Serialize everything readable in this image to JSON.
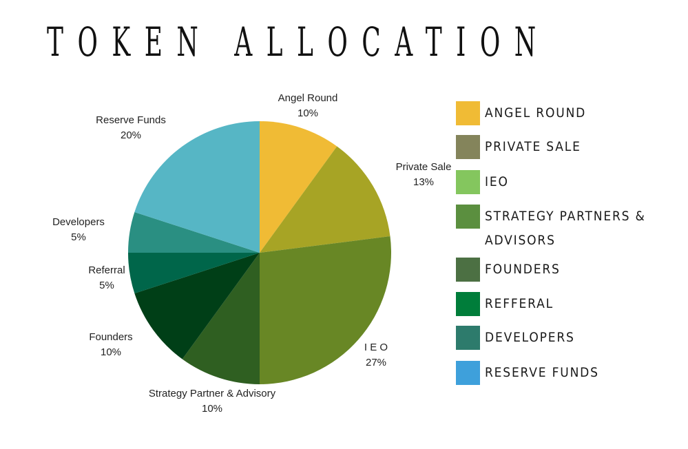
{
  "title": "TOKEN ALLOCATION",
  "chart_data": {
    "type": "pie",
    "title": "TOKEN ALLOCATION",
    "slices": [
      {
        "label": "Angel Round",
        "value": 10,
        "display": "10%",
        "color": "#F0BB35"
      },
      {
        "label": "Private Sale",
        "value": 13,
        "display": "13%",
        "color": "#A7A425"
      },
      {
        "label": "I E O",
        "value": 27,
        "display": "27%",
        "color": "#688725"
      },
      {
        "label": "Strategy Partner & Advisory",
        "value": 10,
        "display": "10%",
        "color": "#2F5F21"
      },
      {
        "label": "Founders",
        "value": 10,
        "display": "10%",
        "color": "#003F17"
      },
      {
        "label": "Referral",
        "value": 5,
        "display": "5%",
        "color": "#00664A"
      },
      {
        "label": "Developers",
        "value": 5,
        "display": "5%",
        "color": "#2A8F82"
      },
      {
        "label": "Reserve Funds",
        "value": 20,
        "display": "20%",
        "color": "#56B6C5"
      }
    ],
    "legend_position": "right",
    "legend": [
      {
        "label": "ANGEL ROUND",
        "color": "#F0BB35"
      },
      {
        "label": "PRIVATE SALE",
        "color": "#84845B"
      },
      {
        "label": "IEO",
        "color": "#84C65E"
      },
      {
        "label": [
          "STRATEGY PARTNERS &",
          "ADVISORS"
        ],
        "color": "#5B8F3F"
      },
      {
        "label": "FOUNDERS",
        "color": "#4C7043"
      },
      {
        "label": "REFFERAL",
        "color": "#007D3A"
      },
      {
        "label": "DEVELOPERS",
        "color": "#2D7B6C"
      },
      {
        "label": "RESERVE FUNDS",
        "color": "#3EA0DB"
      }
    ]
  }
}
